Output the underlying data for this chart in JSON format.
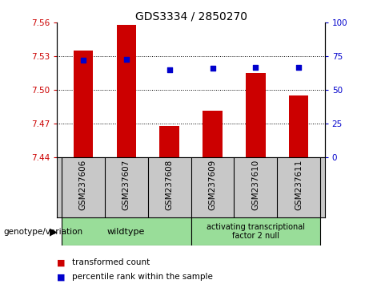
{
  "title": "GDS3334 / 2850270",
  "samples": [
    "GSM237606",
    "GSM237607",
    "GSM237608",
    "GSM237609",
    "GSM237610",
    "GSM237611"
  ],
  "bar_values": [
    7.535,
    7.558,
    7.468,
    7.482,
    7.515,
    7.495
  ],
  "percentile_values": [
    72,
    73,
    65,
    66,
    67,
    67
  ],
  "bar_bottom": 7.44,
  "ylim_left": [
    7.44,
    7.56
  ],
  "ylim_right": [
    0,
    100
  ],
  "yticks_left": [
    7.44,
    7.47,
    7.5,
    7.53,
    7.56
  ],
  "yticks_right": [
    0,
    25,
    50,
    75,
    100
  ],
  "bar_color": "#cc0000",
  "dot_color": "#0000cc",
  "bar_width": 0.45,
  "legend_items": [
    {
      "label": "transformed count",
      "color": "#cc0000"
    },
    {
      "label": "percentile rank within the sample",
      "color": "#0000cc"
    }
  ],
  "genotype_label": "genotype/variation",
  "bg_color": "#ffffff",
  "tick_label_color_left": "#cc0000",
  "tick_label_color_right": "#0000cc",
  "xlabels_bg": "#c8c8c8",
  "group_bg": "#99dd99",
  "group_border": "#000000",
  "wildtype_label": "wildtype",
  "atf_label": "activating transcriptional\nfactor 2 null"
}
